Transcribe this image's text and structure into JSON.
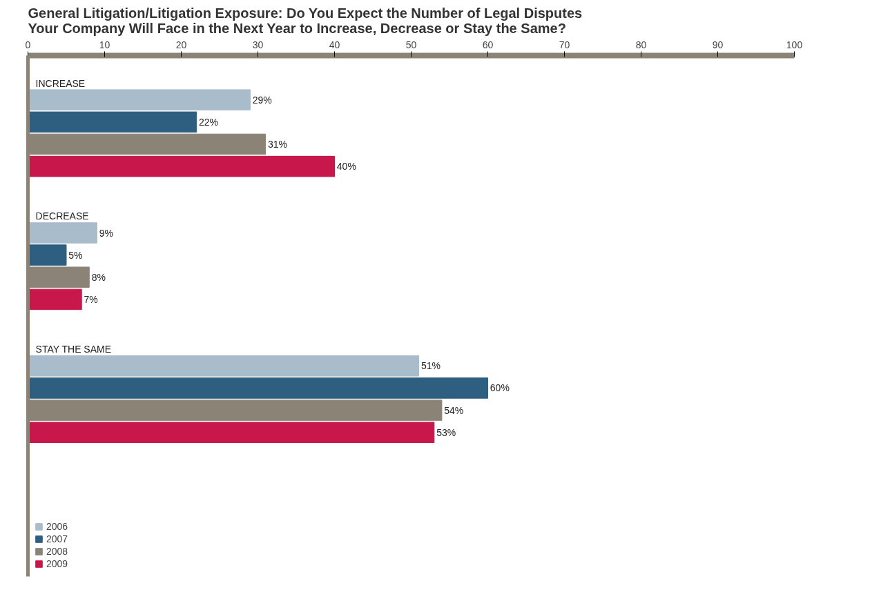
{
  "chart_data": {
    "type": "bar",
    "orientation": "horizontal",
    "title": "General Litigation/Litigation Exposure: Do You Expect the Number of Legal Disputes Your Company Will Face in the Next Year to Increase, Decrease or Stay the Same?",
    "categories": [
      "INCREASE",
      "DECREASE",
      "STAY THE SAME"
    ],
    "series": [
      {
        "name": "2006",
        "color": "#a9bccc",
        "values": [
          29,
          9,
          51
        ],
        "value_labels": [
          "29%",
          "9%",
          "51%"
        ]
      },
      {
        "name": "2007",
        "color": "#2e5f80",
        "values": [
          22,
          5,
          60
        ],
        "value_labels": [
          "22%",
          "5%",
          "60%"
        ]
      },
      {
        "name": "2008",
        "color": "#8c8377",
        "values": [
          31,
          8,
          54
        ],
        "value_labels": [
          "31%",
          "8%",
          "54%"
        ]
      },
      {
        "name": "2009",
        "color": "#c8174a",
        "values": [
          40,
          7,
          53
        ],
        "value_labels": [
          "40%",
          "7%",
          "53%"
        ]
      }
    ],
    "xlim": [
      0,
      100
    ],
    "xticks": [
      0,
      10,
      20,
      30,
      40,
      50,
      60,
      70,
      80,
      90,
      100
    ],
    "grid": false,
    "legend": "bottom left"
  }
}
